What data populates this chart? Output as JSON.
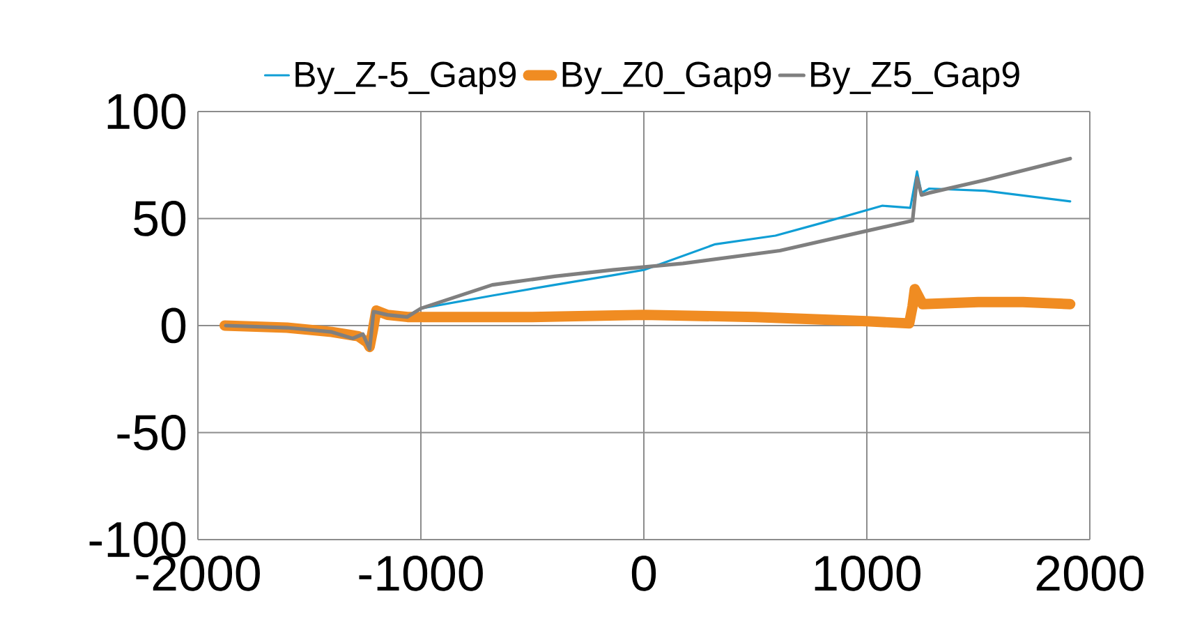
{
  "chart_data": {
    "type": "line",
    "xlim": [
      -2000,
      2000
    ],
    "xticks": [
      -2000,
      -1000,
      0,
      1000,
      2000
    ],
    "ylim": [
      -100,
      100
    ],
    "yticks": [
      -100,
      -50,
      0,
      50,
      100
    ],
    "grid": true,
    "legend": "top",
    "marker": "none",
    "line_style": "solid",
    "series": [
      {
        "name": "By_Z-5_Gap9",
        "color": "#0f9ed5",
        "x": [
          -1000,
          -680,
          -400,
          -140,
          0,
          320,
          590,
          800,
          1070,
          1195,
          1225,
          1245,
          1280,
          1530,
          1912
        ],
        "values": [
          8,
          14,
          19,
          23.5,
          26,
          38,
          42,
          48,
          56,
          55,
          72,
          62,
          64,
          63,
          58
        ]
      },
      {
        "name": "By_Z0_Gap9",
        "color": "#f08c22",
        "x": [
          -1880,
          -1600,
          -1400,
          -1280,
          -1240,
          -1230,
          -1215,
          -1200,
          -1150,
          -1060,
          -1000,
          -500,
          0,
          500,
          1000,
          1190,
          1205,
          1215,
          1250,
          1500,
          1700,
          1912
        ],
        "values": [
          0,
          -1,
          -3,
          -5,
          -8,
          -10,
          -2,
          7,
          5,
          4,
          4,
          4,
          5,
          4,
          2,
          1,
          9,
          17,
          10,
          11,
          11,
          10
        ]
      },
      {
        "name": "By_Z5_Gap9",
        "color": "#7f7f7f",
        "x": [
          -1875,
          -1600,
          -1400,
          -1306,
          -1260,
          -1230,
          -1212,
          -1150,
          -1062,
          -1000,
          -680,
          -400,
          -140,
          175,
          610,
          990,
          1205,
          1225,
          1245,
          1280,
          1530,
          1912
        ],
        "values": [
          0,
          -1,
          -3,
          -6,
          -4,
          -11,
          6.5,
          5,
          4,
          8,
          19,
          23,
          26,
          29,
          35,
          44,
          49,
          69,
          61,
          62,
          68,
          78
        ]
      }
    ]
  }
}
